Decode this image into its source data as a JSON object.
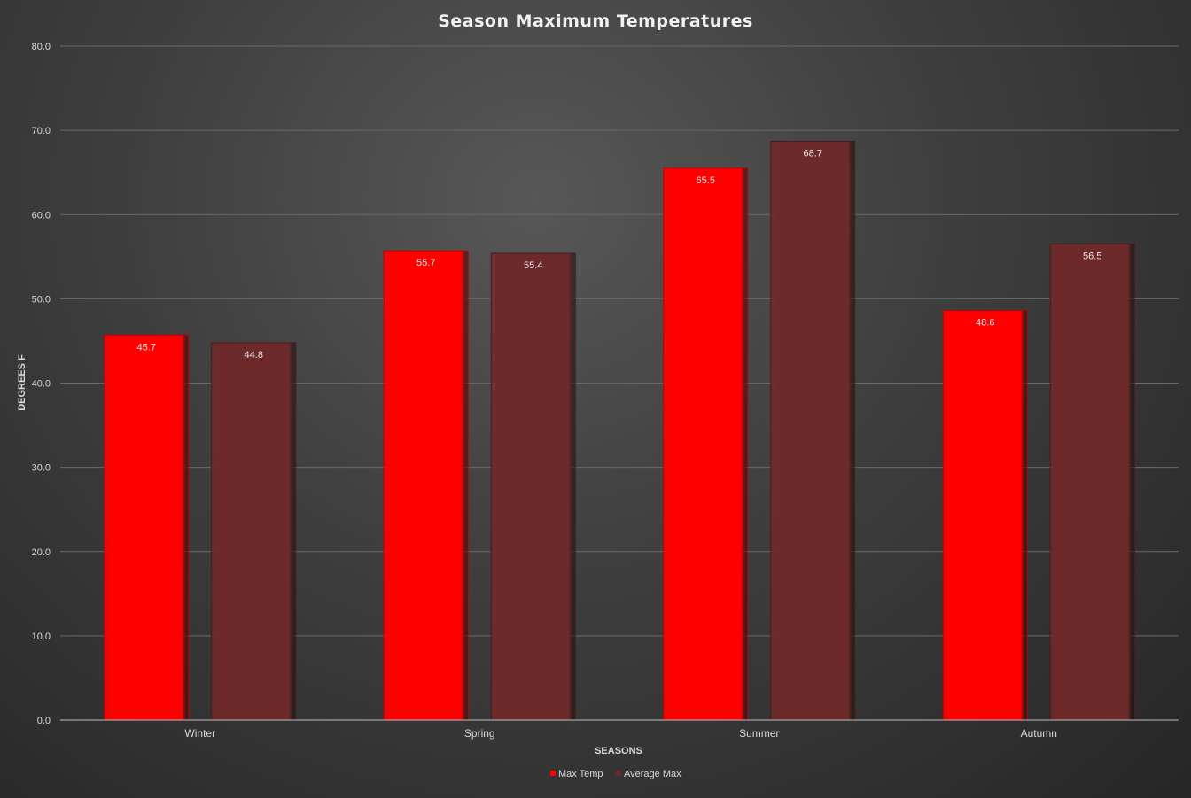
{
  "chart_data": {
    "type": "bar",
    "title": "Season Maximum Temperatures",
    "xlabel": "SEASONS",
    "ylabel": "DEGREES F",
    "categories": [
      "Winter",
      "Spring",
      "Summer",
      "Autumn"
    ],
    "series": [
      {
        "name": "Max Temp",
        "values": [
          45.7,
          55.7,
          65.5,
          48.6
        ],
        "color": "#ff0000"
      },
      {
        "name": "Average Max",
        "values": [
          44.8,
          55.4,
          68.7,
          56.5
        ],
        "color": "#6e2a2a"
      }
    ],
    "ylim": [
      0,
      80
    ],
    "yticks": [
      "0.0",
      "10.0",
      "20.0",
      "30.0",
      "40.0",
      "50.0",
      "60.0",
      "70.0",
      "80.0"
    ],
    "data_labels": [
      [
        "45.7",
        "55.7",
        "65.5",
        "48.6"
      ],
      [
        "44.8",
        "55.4",
        "68.7",
        "56.5"
      ]
    ],
    "grid": true,
    "legend": "bottom",
    "background_color": "#404040"
  }
}
